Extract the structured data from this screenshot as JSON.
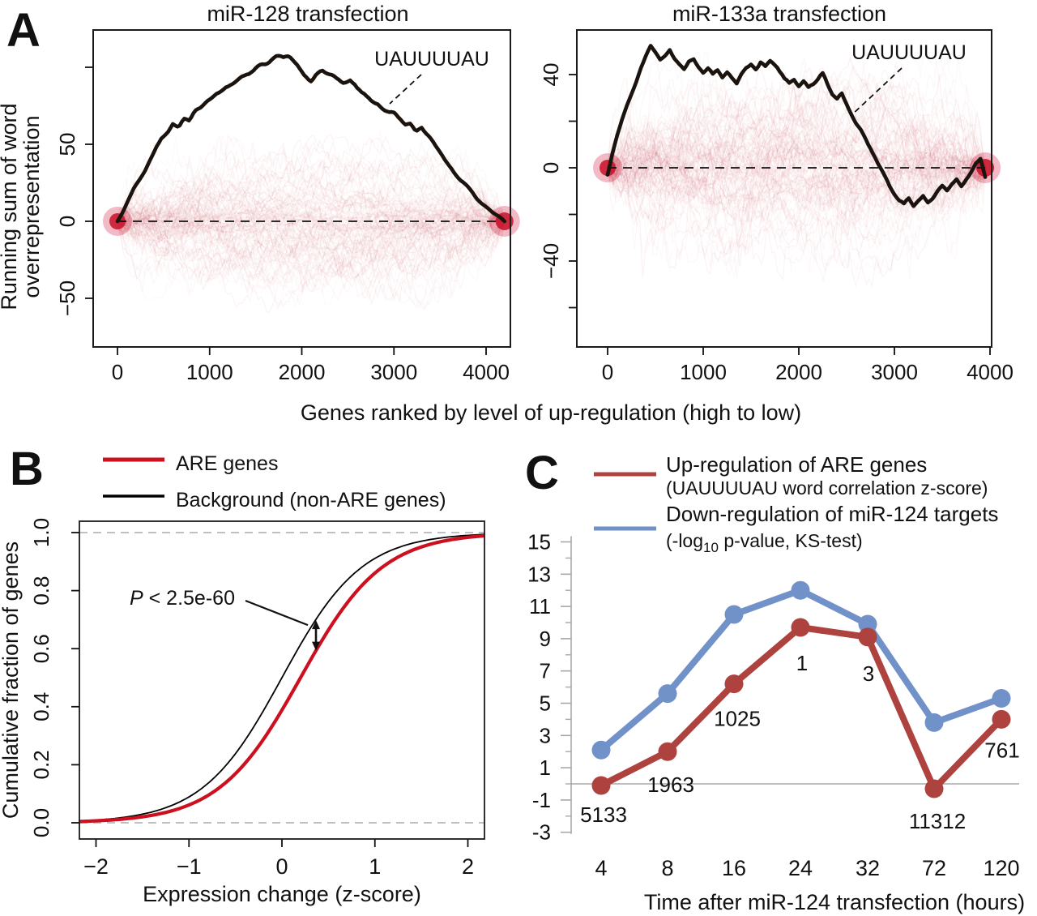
{
  "figure": {
    "panel_a": {
      "label": "A",
      "y_axis_label_line1": "Running sum of word",
      "y_axis_label_line2": "overrepresentation",
      "x_axis_label": "Genes ranked by level of up-regulation (high to low)",
      "plots": [
        {
          "title": "miR-128 transfection",
          "word_label": "UAUUUUAU",
          "x_tick_labels": [
            "0",
            "1000",
            "2000",
            "3000",
            "4000"
          ],
          "y_tick_labels": [
            "50",
            "0",
            "−50"
          ]
        },
        {
          "title": "miR-133a transfection",
          "word_label": "UAUUUUAU",
          "x_tick_labels": [
            "0",
            "1000",
            "2000",
            "3000",
            "4000"
          ],
          "y_tick_labels": [
            "40",
            "0",
            "−40"
          ]
        }
      ]
    },
    "panel_b": {
      "label": "B",
      "legend": [
        {
          "label": "ARE genes",
          "color": "#cc1020"
        },
        {
          "label": "Background (non-ARE genes)",
          "color": "#000000"
        }
      ],
      "annotation_p": "P",
      "annotation_rest": " < 2.5e-60",
      "y_axis_label": "Cumulative fraction of genes",
      "x_axis_label": "Expression change (z-score)",
      "x_tick_labels": [
        "−2",
        "−1",
        "0",
        "1",
        "2"
      ],
      "y_tick_labels": [
        "0.0",
        "0.2",
        "0.4",
        "0.6",
        "0.8",
        "1.0"
      ]
    },
    "panel_c": {
      "label": "C",
      "legend": [
        {
          "line1": "Up-regulation of ARE genes",
          "line2": "(UAUUUUAU word correlation z-score)",
          "color": "#ae423e"
        },
        {
          "line1": "Down-regulation of miR-124 targets",
          "line2_pre": "(-log",
          "line2_sub": "10",
          "line2_post": " p-value, KS-test)",
          "color": "#7191c9"
        }
      ],
      "x_axis_label": "Time after miR-124 transfection (hours)",
      "x_tick_labels": [
        "4",
        "8",
        "16",
        "24",
        "32",
        "72",
        "120"
      ],
      "y_tick_labels": [
        "15",
        "13",
        "11",
        "9",
        "7",
        "5",
        "3",
        "1",
        "-1",
        "-3"
      ]
    }
  },
  "chart_data": [
    {
      "type": "line",
      "panel": "A-left",
      "title": "miR-128 transfection",
      "xlabel": "Genes ranked by level of up-regulation (high to low)",
      "ylabel": "Running sum of word overrepresentation",
      "xlim": [
        0,
        4300
      ],
      "ylim": [
        -80,
        120
      ],
      "x_ticks": [
        0,
        1000,
        2000,
        3000,
        4000
      ],
      "y_ticks": [
        -50,
        0,
        50
      ],
      "zero_line": "dashed",
      "background": "red haze of ~120 random-word running-sum traces converging to 0 at both ends",
      "series": [
        {
          "name": "UAUUUUAU",
          "color": "#1b130e",
          "points": [
            [
              0,
              0
            ],
            [
              60,
              6
            ],
            [
              120,
              14
            ],
            [
              180,
              22
            ],
            [
              240,
              27
            ],
            [
              300,
              33
            ],
            [
              360,
              41
            ],
            [
              420,
              48
            ],
            [
              480,
              54
            ],
            [
              540,
              57
            ],
            [
              600,
              63
            ],
            [
              660,
              61
            ],
            [
              720,
              67
            ],
            [
              780,
              65
            ],
            [
              840,
              71
            ],
            [
              900,
              74
            ],
            [
              960,
              77
            ],
            [
              1020,
              80
            ],
            [
              1080,
              83
            ],
            [
              1140,
              85
            ],
            [
              1200,
              87
            ],
            [
              1260,
              90
            ],
            [
              1320,
              92
            ],
            [
              1380,
              94
            ],
            [
              1440,
              96
            ],
            [
              1500,
              99
            ],
            [
              1560,
              102
            ],
            [
              1620,
              104
            ],
            [
              1680,
              106
            ],
            [
              1740,
              108
            ],
            [
              1800,
              107
            ],
            [
              1860,
              108
            ],
            [
              1920,
              103
            ],
            [
              1980,
              99
            ],
            [
              2040,
              95
            ],
            [
              2100,
              91
            ],
            [
              2160,
              95
            ],
            [
              2220,
              97
            ],
            [
              2280,
              95
            ],
            [
              2340,
              94
            ],
            [
              2400,
              92
            ],
            [
              2460,
              89
            ],
            [
              2520,
              91
            ],
            [
              2580,
              88
            ],
            [
              2640,
              85
            ],
            [
              2700,
              82
            ],
            [
              2760,
              79
            ],
            [
              2820,
              77
            ],
            [
              2880,
              73
            ],
            [
              2940,
              71
            ],
            [
              3000,
              70
            ],
            [
              3060,
              66
            ],
            [
              3120,
              62
            ],
            [
              3180,
              64
            ],
            [
              3240,
              58
            ],
            [
              3300,
              61
            ],
            [
              3360,
              56
            ],
            [
              3420,
              51
            ],
            [
              3480,
              46
            ],
            [
              3540,
              41
            ],
            [
              3600,
              36
            ],
            [
              3660,
              31
            ],
            [
              3720,
              27
            ],
            [
              3780,
              24
            ],
            [
              3840,
              20
            ],
            [
              3900,
              15
            ],
            [
              3960,
              11
            ],
            [
              4020,
              8
            ],
            [
              4080,
              5
            ],
            [
              4140,
              3
            ],
            [
              4200,
              0
            ]
          ]
        }
      ]
    },
    {
      "type": "line",
      "panel": "A-right",
      "title": "miR-133a transfection",
      "xlabel": "Genes ranked by level of up-regulation (high to low)",
      "ylabel": "Running sum of word overrepresentation",
      "xlim": [
        0,
        4000
      ],
      "ylim": [
        -77,
        60
      ],
      "x_ticks": [
        0,
        1000,
        2000,
        3000,
        4000
      ],
      "y_ticks": [
        -40,
        0,
        40
      ],
      "zero_line": "dashed",
      "background": "red haze of ~120 random-word running-sum traces converging to 0 at both ends",
      "series": [
        {
          "name": "UAUUUUAU",
          "color": "#1b130e",
          "points": [
            [
              0,
              -3
            ],
            [
              50,
              6
            ],
            [
              100,
              14
            ],
            [
              150,
              21
            ],
            [
              200,
              27
            ],
            [
              250,
              32
            ],
            [
              300,
              37
            ],
            [
              350,
              43
            ],
            [
              400,
              48
            ],
            [
              450,
              52
            ],
            [
              500,
              49
            ],
            [
              550,
              46
            ],
            [
              600,
              48
            ],
            [
              650,
              51
            ],
            [
              700,
              47
            ],
            [
              750,
              44
            ],
            [
              800,
              42
            ],
            [
              850,
              45
            ],
            [
              900,
              46
            ],
            [
              950,
              43
            ],
            [
              1000,
              41
            ],
            [
              1050,
              43
            ],
            [
              1100,
              40
            ],
            [
              1150,
              42
            ],
            [
              1200,
              39
            ],
            [
              1250,
              41
            ],
            [
              1300,
              38
            ],
            [
              1350,
              36
            ],
            [
              1400,
              40
            ],
            [
              1450,
              43
            ],
            [
              1500,
              44
            ],
            [
              1550,
              42
            ],
            [
              1600,
              45
            ],
            [
              1650,
              43
            ],
            [
              1700,
              46
            ],
            [
              1750,
              44
            ],
            [
              1800,
              41
            ],
            [
              1850,
              38
            ],
            [
              1900,
              36
            ],
            [
              1950,
              38
            ],
            [
              2000,
              35
            ],
            [
              2050,
              37
            ],
            [
              2100,
              34
            ],
            [
              2150,
              36
            ],
            [
              2200,
              38
            ],
            [
              2250,
              40
            ],
            [
              2300,
              36
            ],
            [
              2350,
              32
            ],
            [
              2400,
              29
            ],
            [
              2450,
              31
            ],
            [
              2500,
              27
            ],
            [
              2550,
              23
            ],
            [
              2600,
              19
            ],
            [
              2650,
              16
            ],
            [
              2700,
              12
            ],
            [
              2750,
              8
            ],
            [
              2800,
              4
            ],
            [
              2850,
              0
            ],
            [
              2900,
              -4
            ],
            [
              2950,
              -8
            ],
            [
              3000,
              -11
            ],
            [
              3050,
              -14
            ],
            [
              3100,
              -16
            ],
            [
              3150,
              -13
            ],
            [
              3200,
              -16
            ],
            [
              3250,
              -14
            ],
            [
              3300,
              -12
            ],
            [
              3350,
              -15
            ],
            [
              3400,
              -13
            ],
            [
              3450,
              -10
            ],
            [
              3500,
              -8
            ],
            [
              3550,
              -10
            ],
            [
              3600,
              -7
            ],
            [
              3650,
              -5
            ],
            [
              3700,
              -8
            ],
            [
              3750,
              -5
            ],
            [
              3800,
              -2
            ],
            [
              3850,
              2
            ],
            [
              3900,
              4
            ],
            [
              3950,
              -4
            ]
          ]
        }
      ]
    },
    {
      "type": "line",
      "panel": "B",
      "xlabel": "Expression change (z-score)",
      "ylabel": "Cumulative fraction of genes",
      "xlim": [
        -2.2,
        2.2
      ],
      "ylim": [
        0,
        1
      ],
      "x_ticks": [
        -2,
        -1,
        0,
        1,
        2
      ],
      "y_ticks": [
        0,
        0.2,
        0.4,
        0.6,
        0.8,
        1
      ],
      "annotation": "P < 2.5e-60",
      "gridlines_dashed_at": [
        0,
        1
      ],
      "series": [
        {
          "name": "Background (non-ARE genes)",
          "color": "#000000",
          "width": 1.8,
          "logistic": {
            "x0": 0.0,
            "s": 0.43
          },
          "points": [
            [
              -2,
              0.009
            ],
            [
              -1.5,
              0.03
            ],
            [
              -1,
              0.089
            ],
            [
              -0.5,
              0.238
            ],
            [
              0,
              0.5
            ],
            [
              0.5,
              0.762
            ],
            [
              1,
              0.911
            ],
            [
              1.5,
              0.97
            ],
            [
              2,
              0.991
            ]
          ]
        },
        {
          "name": "ARE genes",
          "color": "#cc1020",
          "width": 4.2,
          "logistic": {
            "x0": 0.2,
            "s": 0.44
          },
          "points": [
            [
              -2,
              0.007
            ],
            [
              -1.5,
              0.021
            ],
            [
              -1,
              0.062
            ],
            [
              -0.5,
              0.17
            ],
            [
              0,
              0.383
            ],
            [
              0.5,
              0.664
            ],
            [
              1,
              0.862
            ],
            [
              1.5,
              0.952
            ],
            [
              2,
              0.984
            ]
          ]
        }
      ]
    },
    {
      "type": "line",
      "panel": "C",
      "xlabel": "Time after miR-124 transfection (hours)",
      "categories": [
        4,
        8,
        16,
        24,
        32,
        72,
        120
      ],
      "ylim": [
        -3,
        15
      ],
      "y_ticks": [
        -3,
        -1,
        1,
        3,
        5,
        7,
        9,
        11,
        13,
        15
      ],
      "zero_line": true,
      "series": [
        {
          "name": "Down-regulation of miR-124 targets (-log10 p-value, KS-test)",
          "color": "#7191c9",
          "values": [
            2.1,
            5.6,
            10.5,
            12.0,
            9.9,
            3.8,
            5.3
          ]
        },
        {
          "name": "Up-regulation of ARE genes (UAUUUUAU word correlation z-score)",
          "color": "#ae423e",
          "values": [
            -0.1,
            2.0,
            6.2,
            9.7,
            9.1,
            -0.3,
            4.0
          ],
          "point_labels": [
            "5133",
            "1963",
            "1025",
            "1",
            "3",
            "11312",
            "761"
          ]
        }
      ]
    }
  ]
}
